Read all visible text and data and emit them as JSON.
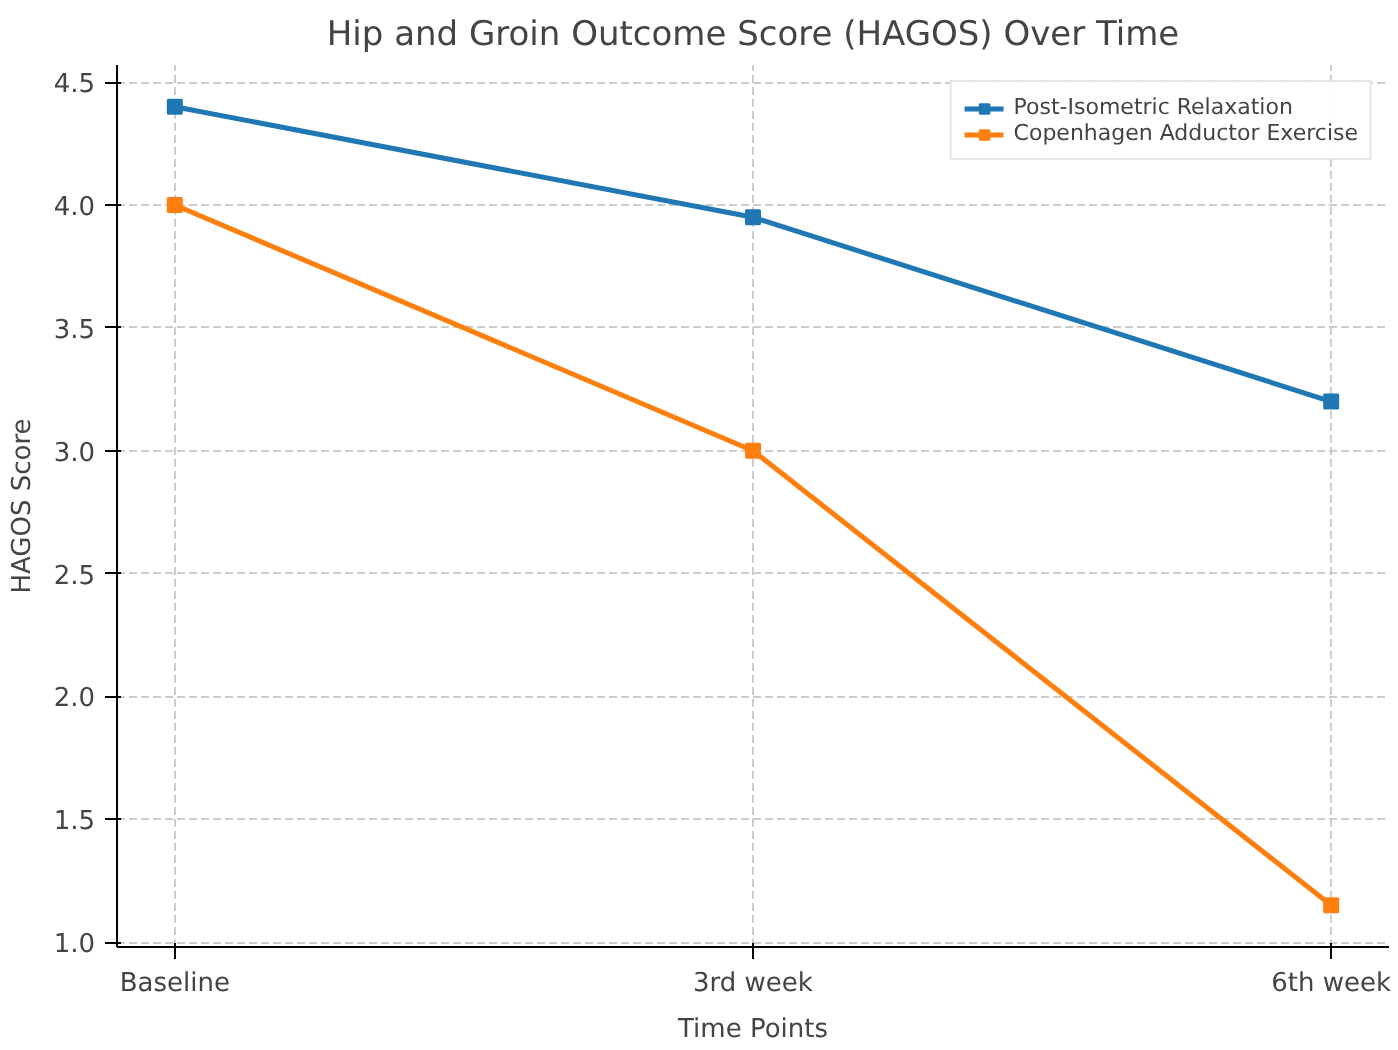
{
  "chart_data": {
    "type": "line",
    "title": "Hip and Groin Outcome Score (HAGOS) Over Time",
    "xlabel": "Time Points",
    "ylabel": "HAGOS Score",
    "categories": [
      "Baseline",
      "3rd week",
      "6th week"
    ],
    "series": [
      {
        "name": "Post-Isometric Relaxation",
        "color": "#1f77b4",
        "values": [
          4.4,
          3.95,
          3.2
        ]
      },
      {
        "name": "Copenhagen Adductor Exercise",
        "color": "#ff7f0e",
        "values": [
          4.0,
          3.0,
          1.15
        ]
      }
    ],
    "ylim": [
      0.98,
      4.57
    ],
    "yticks": [
      {
        "value": 1,
        "label": "1.0"
      },
      1.5,
      {
        "value": 2,
        "label": "2.0"
      },
      2.5,
      {
        "value": 3,
        "label": "3.0"
      },
      3.5,
      {
        "value": 4,
        "label": "4.0"
      },
      4.5
    ],
    "grid": true,
    "legend": "top right",
    "marker": "square",
    "line_style": "solid"
  }
}
